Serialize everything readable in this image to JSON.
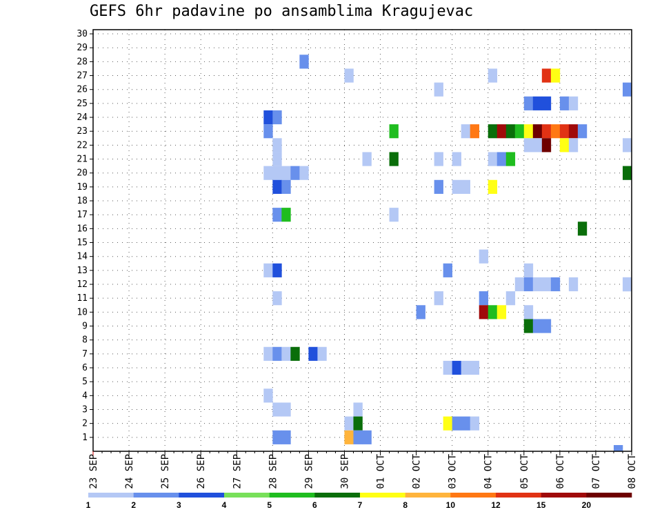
{
  "chart_data": {
    "type": "heatmap",
    "title": "GEFS 6hr padavine po ansamblima Kragujevac",
    "xlabel": "",
    "ylabel": "",
    "x_tick_labels": [
      "23 SEP",
      "24 SEP",
      "25 SEP",
      "26 SEP",
      "27 SEP",
      "28 SEP",
      "29 SEP",
      "30 SEP",
      "01 OCT",
      "02 OCT",
      "03 OCT",
      "04 OCT",
      "05 OCT",
      "06 OCT",
      "07 OCT",
      "08 OCT"
    ],
    "x_range_days": [
      0,
      15
    ],
    "steps_per_day": 4,
    "ylim": [
      0,
      30
    ],
    "y_ticks": [
      1,
      2,
      3,
      4,
      5,
      6,
      7,
      8,
      9,
      10,
      11,
      12,
      13,
      14,
      15,
      16,
      17,
      18,
      19,
      20,
      21,
      22,
      23,
      24,
      25,
      26,
      27,
      28,
      29,
      30
    ],
    "grid": true,
    "legend_position": "bottom",
    "color_levels": [
      1,
      2,
      3,
      4,
      5,
      6,
      7,
      8,
      10,
      12,
      15,
      20
    ],
    "colorbar_labels": [
      "1",
      "2",
      "3",
      "4",
      "5",
      "6",
      "7",
      "8",
      "10",
      "12",
      "15",
      "20"
    ],
    "colors": [
      "#b4c8f5",
      "#6890ec",
      "#2050dc",
      "#78e05a",
      "#1fbd1f",
      "#0a6e0a",
      "#ffff14",
      "#ffb43c",
      "#ff7814",
      "#e13214",
      "#a00a0a",
      "#6e0000"
    ],
    "cells": [
      [
        5,
        28,
        1
      ],
      [
        7,
        27,
        0
      ],
      [
        11,
        27,
        0
      ],
      [
        12,
        27,
        9
      ],
      [
        12,
        27,
        6
      ],
      [
        9,
        26,
        0
      ],
      [
        14,
        26,
        1
      ],
      [
        12,
        25,
        1
      ],
      [
        12,
        25,
        2
      ],
      [
        12,
        25,
        2
      ],
      [
        13,
        25,
        1
      ],
      [
        13,
        25,
        0
      ],
      [
        4,
        24,
        2
      ],
      [
        4,
        24,
        1
      ],
      [
        4,
        23,
        1
      ],
      [
        8,
        23,
        4
      ],
      [
        10,
        23,
        0
      ],
      [
        10,
        23,
        8
      ],
      [
        11,
        23,
        5
      ],
      [
        11,
        23,
        10
      ],
      [
        11,
        23,
        5
      ],
      [
        11,
        23,
        4
      ],
      [
        12,
        23,
        6
      ],
      [
        12,
        23,
        11
      ],
      [
        12,
        23,
        9
      ],
      [
        12,
        23,
        8
      ],
      [
        13,
        23,
        9
      ],
      [
        13,
        23,
        10
      ],
      [
        13,
        23,
        1
      ],
      [
        5,
        22,
        0
      ],
      [
        12,
        22,
        0
      ],
      [
        12,
        22,
        0
      ],
      [
        12,
        22,
        11
      ],
      [
        13,
        22,
        6
      ],
      [
        13,
        22,
        0
      ],
      [
        15,
        22,
        0
      ],
      [
        5,
        21,
        0
      ],
      [
        7,
        21,
        0
      ],
      [
        8,
        21,
        5
      ],
      [
        9,
        21,
        0
      ],
      [
        10,
        21,
        0
      ],
      [
        11,
        21,
        0
      ],
      [
        11,
        21,
        1
      ],
      [
        11,
        21,
        4
      ],
      [
        4,
        20,
        0
      ],
      [
        5,
        20,
        0
      ],
      [
        5,
        20,
        0
      ],
      [
        5,
        20,
        1
      ],
      [
        5,
        20,
        0
      ],
      [
        15,
        20,
        0
      ],
      [
        15,
        20,
        5
      ],
      [
        5,
        19,
        2
      ],
      [
        5,
        19,
        1
      ],
      [
        9,
        19,
        1
      ],
      [
        10,
        19,
        0
      ],
      [
        10,
        19,
        0
      ],
      [
        11,
        19,
        6
      ],
      [
        5,
        17,
        1
      ],
      [
        5,
        17,
        4
      ],
      [
        8,
        17,
        0
      ],
      [
        13,
        16,
        5
      ],
      [
        10,
        14,
        0
      ],
      [
        4,
        13,
        0
      ],
      [
        5,
        13,
        2
      ],
      [
        9,
        13,
        1
      ],
      [
        12,
        13,
        0
      ],
      [
        11,
        12,
        0
      ],
      [
        12,
        12,
        1
      ],
      [
        12,
        12,
        0
      ],
      [
        12,
        12,
        0
      ],
      [
        12,
        12,
        1
      ],
      [
        13,
        12,
        0
      ],
      [
        15,
        12,
        1
      ],
      [
        15,
        12,
        0
      ],
      [
        5,
        11,
        0
      ],
      [
        9,
        11,
        0
      ],
      [
        10,
        11,
        1
      ],
      [
        11,
        11,
        0
      ],
      [
        9,
        10,
        1
      ],
      [
        10,
        10,
        10
      ],
      [
        10,
        10,
        4
      ],
      [
        10,
        10,
        6
      ],
      [
        12,
        10,
        0
      ],
      [
        12,
        9,
        5
      ],
      [
        12,
        9,
        1
      ],
      [
        12,
        9,
        1
      ],
      [
        4,
        7,
        0
      ],
      [
        5,
        7,
        1
      ],
      [
        5,
        7,
        0
      ],
      [
        5,
        7,
        5
      ],
      [
        6,
        7,
        2
      ],
      [
        6,
        7,
        0
      ],
      [
        9,
        6,
        0
      ],
      [
        9,
        6,
        2
      ],
      [
        9,
        6,
        0
      ],
      [
        9,
        6,
        0
      ],
      [
        4,
        4,
        0
      ],
      [
        5,
        3,
        0
      ],
      [
        5,
        3,
        0
      ],
      [
        7,
        3,
        0
      ],
      [
        7,
        2,
        0
      ],
      [
        7,
        2,
        5
      ],
      [
        9,
        2,
        6
      ],
      [
        9,
        2,
        1
      ],
      [
        9,
        2,
        1
      ],
      [
        9,
        2,
        0
      ],
      [
        5,
        1,
        1
      ],
      [
        5,
        1,
        1
      ],
      [
        7,
        1,
        7
      ],
      [
        7,
        1,
        1
      ],
      [
        7,
        1,
        1
      ],
      [
        14,
        0,
        1
      ]
    ]
  }
}
